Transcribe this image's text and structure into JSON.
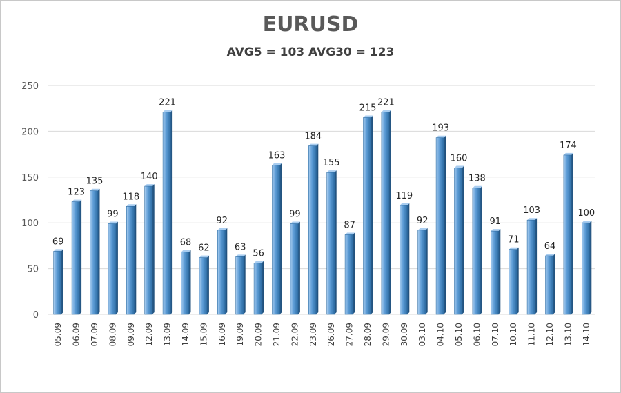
{
  "chart_data": {
    "type": "bar",
    "title": "EURUSD",
    "subtitle": "AVG5 = 103 AVG30 = 123",
    "xlabel": "",
    "ylabel": "",
    "ylim": [
      0,
      250
    ],
    "yticks": [
      0,
      50,
      100,
      150,
      200,
      250
    ],
    "grid": true,
    "categories": [
      "05.09",
      "06.09",
      "07.09",
      "08.09",
      "09.09",
      "12.09",
      "13.09",
      "14.09",
      "15.09",
      "16.09",
      "19.09",
      "20.09",
      "21.09",
      "22.09",
      "23.09",
      "26.09",
      "27.09",
      "28.09",
      "29.09",
      "30.09",
      "03.10",
      "04.10",
      "05.10",
      "06.10",
      "07.10",
      "10.10",
      "11.10",
      "12.10",
      "13.10",
      "14.10"
    ],
    "values": [
      69,
      123,
      135,
      99,
      118,
      140,
      221,
      68,
      62,
      92,
      63,
      56,
      163,
      99,
      184,
      155,
      87,
      215,
      221,
      119,
      92,
      193,
      160,
      138,
      91,
      71,
      103,
      64,
      174,
      100
    ],
    "colors": {
      "bar_light": "#a9cdf0",
      "bar_mid": "#5b9bd5",
      "bar_dark": "#1f4e79",
      "grid": "#d9d9d9"
    }
  }
}
